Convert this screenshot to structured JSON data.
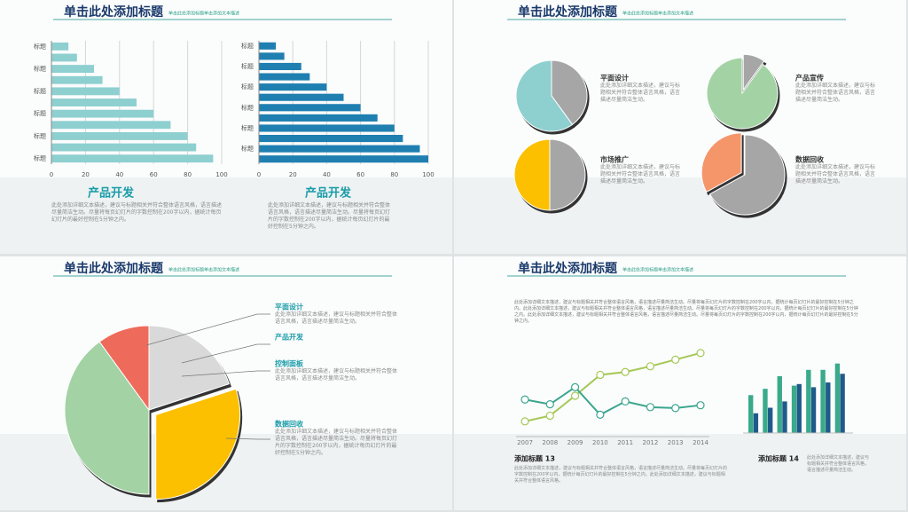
{
  "slides": [
    {
      "title": "单击此处添加标题",
      "subtitle": "单击此处添加标题单击添加文本描述"
    },
    {
      "title": "单击此处添加标题",
      "subtitle": "单击此处添加标题单击添加文本描述"
    },
    {
      "title": "单击此处添加标题",
      "subtitle": "单击此处添加标题单击添加文本描述",
      "items": [
        {
          "label": "平面设计",
          "description": "此处添加详细文本描述，建议与标题相关并符合整体语言风格，语言描述尽量简洁生动。"
        },
        {
          "label": "产品开发"
        },
        {
          "label": "控制面板",
          "description": "此处添加详细文本描述，建议与标题相关并符合整体语言风格，语言描述尽量简洁生动。"
        },
        {
          "label": "数据回收",
          "description": "此处添加详细文本描述，建议与标题相关并符合整体语言风格，语言描述尽量简洁生动。尽量将每页幻灯片的字数控制在200字以内，据统计每页幻灯片的最好控制在5分钟之内。"
        }
      ]
    },
    {
      "title": "单击此处添加标题",
      "subtitle": "单击此处添加标题单击添加文本描述",
      "intro": "此处添加详细文本描述，建议与标题相关并符合整体语言风格，语言描述尽量简洁生动。尽量将每页幻灯片的字数控制在200字以内，据统计每页幻灯片的最好控制在5分钟之内。此处添加详细文本描述，建议与标题相关并符合整体语言风格，语言描述尽量简洁生动。尽量将每页幻灯片的字数控制在200字以内，据统计每页幻灯片的最好控制在5分钟之内。此处添加详细文本描述，建议与标题相关并符合整体语言风格，语言描述尽量简洁生动。尽量将每页幻灯片的字数控制在200字以内，据统计每页幻灯片的最好控制在5分钟之内。"
    }
  ],
  "chart_data": [
    {
      "type": "hbar",
      "caption": "产品开发",
      "description": "此处添加详细文本描述，建议与标题相关并符合整体语言风格，语言描述尽量简洁生动。尽量将每页幻灯片的字数控制在200字以内，据统计每页幻灯片的最好控制在5分钟之内。",
      "categories": [
        "标题",
        null,
        "标题",
        null,
        "标题",
        null,
        "标题",
        null,
        "标题",
        null,
        "标题"
      ],
      "values": [
        10,
        15,
        25,
        30,
        40,
        50,
        60,
        70,
        80,
        85,
        95
      ],
      "color": "#8ecfd0",
      "xlim": [
        0,
        100
      ],
      "xticks": [
        0,
        20,
        40,
        60,
        80,
        100
      ],
      "grid": true
    },
    {
      "type": "hbar",
      "caption": "产品开发",
      "description": "此处添加详细文本描述，建议与标题相关并符合整体语言风格，语言描述尽量简洁生动。尽量将每页幻灯片的字数控制在200字以内，据统计每页幻灯片的最好控制在5分钟之内。",
      "categories": [
        "标题",
        null,
        "标题",
        null,
        "标题",
        null,
        "标题",
        null,
        "标题",
        null,
        "标题",
        null
      ],
      "values": [
        10,
        15,
        25,
        30,
        40,
        50,
        60,
        70,
        80,
        85,
        95,
        100
      ],
      "color": "#1f7fb0",
      "xlim": [
        0,
        100
      ],
      "xticks": [
        0,
        20,
        40,
        60,
        80,
        100
      ],
      "grid": true
    },
    {
      "type": "pie",
      "label": "平面设计",
      "description": "此处添加详细文本描述，建议与标题相关并符合整体语言风格，语言描述尽量简洁生动。",
      "values": [
        40,
        60
      ],
      "colors": [
        "#a6a6a6",
        "#8ecfd0"
      ]
    },
    {
      "type": "pie",
      "label": "产品宣传",
      "description": "此处添加详细文本描述，建议与标题相关并符合整体语言风格，语言描述尽量简洁生动。",
      "values": [
        10,
        90
      ],
      "colors": [
        "#a6a6a6",
        "#a3d3a5"
      ],
      "explode": 0
    },
    {
      "type": "pie",
      "label": "市场推广",
      "description": "此处添加详细文本描述，建议与标题相关并符合整体语言风格，语言描述尽量简洁生动。",
      "values": [
        50,
        50
      ],
      "colors": [
        "#a6a6a6",
        "#fcc000"
      ]
    },
    {
      "type": "pie",
      "label": "数据回收",
      "description": "此处添加详细文本描述，建议与标题相关并符合整体语言风格，语言描述尽量简洁生动。",
      "values": [
        67,
        33
      ],
      "colors": [
        "#a6a6a6",
        "#f5966a"
      ],
      "explode": 1
    },
    {
      "type": "pie",
      "values": [
        20,
        30,
        40,
        10
      ],
      "colors": [
        "#d9d9d9",
        "#fcc000",
        "#a3d3a5",
        "#ee6b5b"
      ],
      "explode": 1
    },
    {
      "type": "line",
      "caption": "添加标题 13",
      "description": "此处添加详细文本描述，建议与标题相关并符合整体语言风格，语言描述尽量简洁生动。尽量将每页幻灯片的字数控制在200字以内，据统计每页幻灯片的最好控制在5分钟之内。此处添加详细文本描述，建议与标题相关并符合整体语言风格。",
      "x": [
        2007,
        2008,
        2009,
        2010,
        2011,
        2012,
        2013,
        2014
      ],
      "xlim": [
        2007,
        2014
      ],
      "xticks": [
        2007,
        2008,
        2009,
        2010,
        2011,
        2012,
        2013,
        2014
      ],
      "ylim": [
        0,
        100
      ],
      "series": [
        {
          "color": "#a4c856",
          "values": [
            16,
            22,
            43,
            65,
            68,
            74,
            81,
            88
          ]
        },
        {
          "color": "#3aa58e",
          "values": [
            39,
            34,
            52,
            23,
            37,
            31,
            30,
            33
          ]
        }
      ]
    },
    {
      "type": "bar",
      "caption": "添加标题 14",
      "description": "此处添加详细文本描述，建议与标题相关并符合整体语言风格，语言描述尽量简洁生动。",
      "ylim": [
        0,
        100
      ],
      "series": [
        {
          "color": "#3aaa8a",
          "values": [
            48,
            56,
            72,
            60,
            80,
            80,
            88
          ]
        },
        {
          "color": "#1f5b8a",
          "values": [
            25,
            32,
            40,
            62,
            58,
            64,
            75
          ]
        }
      ]
    }
  ]
}
